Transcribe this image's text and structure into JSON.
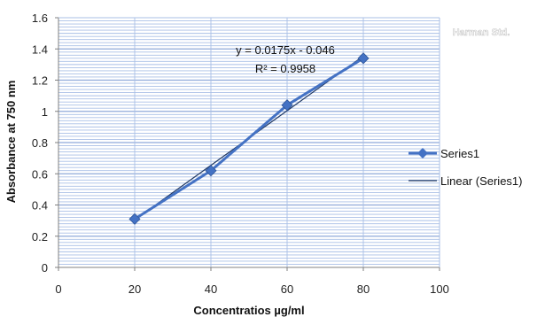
{
  "watermark": "Harman Std.",
  "chart_data": {
    "type": "scatter",
    "xlabel": "Concentratios µg/ml",
    "ylabel": "Absorbance at 750 nm",
    "xlim": [
      0,
      100
    ],
    "ylim": [
      0,
      1.6
    ],
    "xticks": [
      "0",
      "20",
      "40",
      "60",
      "80",
      "100"
    ],
    "yticks": [
      "0",
      "0.2",
      "0.4",
      "0.6",
      "0.8",
      "1",
      "1.2",
      "1.4",
      "1.6"
    ],
    "grid": true,
    "legend_position": "right",
    "series": [
      {
        "name": "Series1",
        "x": [
          20,
          40,
          60,
          80
        ],
        "y": [
          0.31,
          0.62,
          1.04,
          1.34
        ],
        "color": "#4472c4",
        "marker": "diamond"
      }
    ],
    "trendline": {
      "name": "Linear (Series1)",
      "slope": 0.0175,
      "intercept": -0.046,
      "color": "#1f3864"
    },
    "annotations": {
      "equation": "y = 0.0175x - 0.046",
      "r_squared": "R² = 0.9958"
    }
  }
}
